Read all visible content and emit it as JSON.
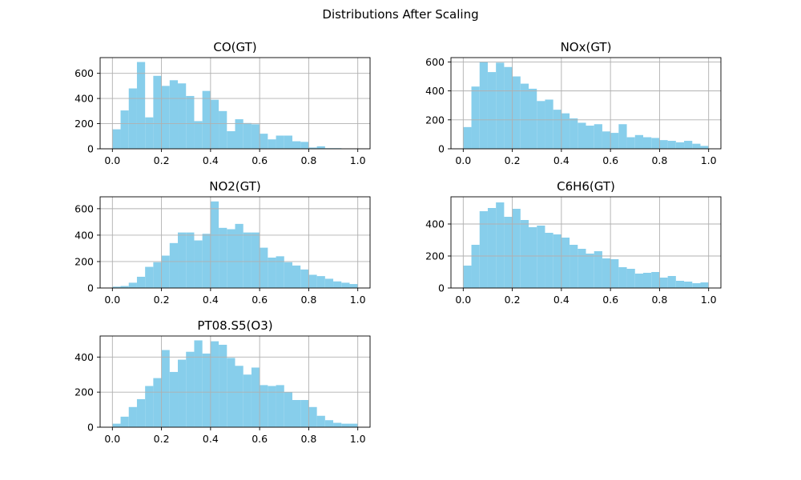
{
  "figure": {
    "title": "Distributions After Scaling"
  },
  "colors": {
    "bar": "#87CEEB",
    "grid": "#b0b0b0",
    "axis": "#000000"
  },
  "chart_data": [
    {
      "type": "bar",
      "title": "CO(GT)",
      "xlabel": "",
      "ylabel": "",
      "xlim": [
        -0.05,
        1.05
      ],
      "ylim": [
        0,
        725
      ],
      "xticks": [
        "0.0",
        "0.2",
        "0.4",
        "0.6",
        "0.8",
        "1.0"
      ],
      "yticks": [
        "0",
        "200",
        "400",
        "600"
      ],
      "grid": true,
      "bin_edges": [
        0,
        1
      ],
      "values": [
        155,
        305,
        480,
        690,
        250,
        580,
        500,
        545,
        520,
        420,
        220,
        460,
        390,
        300,
        140,
        235,
        205,
        195,
        120,
        75,
        105,
        105,
        60,
        55,
        10,
        20,
        5,
        5,
        3,
        3
      ]
    },
    {
      "type": "bar",
      "title": "NOx(GT)",
      "xlabel": "",
      "ylabel": "",
      "xlim": [
        -0.05,
        1.05
      ],
      "ylim": [
        0,
        630
      ],
      "xticks": [
        "0.0",
        "0.2",
        "0.4",
        "0.6",
        "0.8",
        "1.0"
      ],
      "yticks": [
        "0",
        "200",
        "400",
        "600"
      ],
      "grid": true,
      "bin_edges": [
        0,
        1
      ],
      "values": [
        150,
        430,
        600,
        530,
        595,
        565,
        500,
        450,
        415,
        330,
        340,
        270,
        245,
        210,
        180,
        160,
        170,
        120,
        110,
        170,
        80,
        95,
        80,
        75,
        60,
        55,
        45,
        55,
        35,
        20
      ]
    },
    {
      "type": "bar",
      "title": "NO2(GT)",
      "xlabel": "",
      "ylabel": "",
      "xlim": [
        -0.05,
        1.05
      ],
      "ylim": [
        0,
        690
      ],
      "xticks": [
        "0.0",
        "0.2",
        "0.4",
        "0.6",
        "0.8",
        "1.0"
      ],
      "yticks": [
        "0",
        "200",
        "400",
        "600"
      ],
      "grid": true,
      "bin_edges": [
        0,
        1
      ],
      "values": [
        10,
        15,
        40,
        85,
        160,
        195,
        245,
        340,
        420,
        420,
        360,
        410,
        655,
        455,
        445,
        485,
        420,
        420,
        305,
        230,
        240,
        195,
        170,
        140,
        100,
        90,
        70,
        50,
        40,
        30
      ]
    },
    {
      "type": "bar",
      "title": "C6H6(GT)",
      "xlabel": "",
      "ylabel": "",
      "xlim": [
        -0.05,
        1.05
      ],
      "ylim": [
        0,
        570
      ],
      "xticks": [
        "0.0",
        "0.2",
        "0.4",
        "0.6",
        "0.8",
        "1.0"
      ],
      "yticks": [
        "0",
        "200",
        "400"
      ],
      "grid": true,
      "bin_edges": [
        0,
        1
      ],
      "values": [
        140,
        270,
        480,
        500,
        535,
        445,
        495,
        425,
        380,
        390,
        345,
        335,
        315,
        270,
        245,
        215,
        230,
        185,
        180,
        130,
        120,
        90,
        95,
        100,
        65,
        75,
        45,
        40,
        30,
        35
      ]
    },
    {
      "type": "bar",
      "title": "PT08.S5(O3)",
      "xlabel": "",
      "ylabel": "",
      "xlim": [
        -0.05,
        1.05
      ],
      "ylim": [
        0,
        520
      ],
      "xticks": [
        "0.0",
        "0.2",
        "0.4",
        "0.6",
        "0.8",
        "1.0"
      ],
      "yticks": [
        "0",
        "200",
        "400"
      ],
      "grid": true,
      "bin_edges": [
        0,
        1
      ],
      "values": [
        20,
        60,
        115,
        160,
        235,
        280,
        440,
        315,
        385,
        430,
        495,
        420,
        490,
        470,
        395,
        350,
        300,
        340,
        240,
        235,
        240,
        200,
        155,
        155,
        115,
        65,
        40,
        25,
        20,
        20
      ]
    }
  ]
}
